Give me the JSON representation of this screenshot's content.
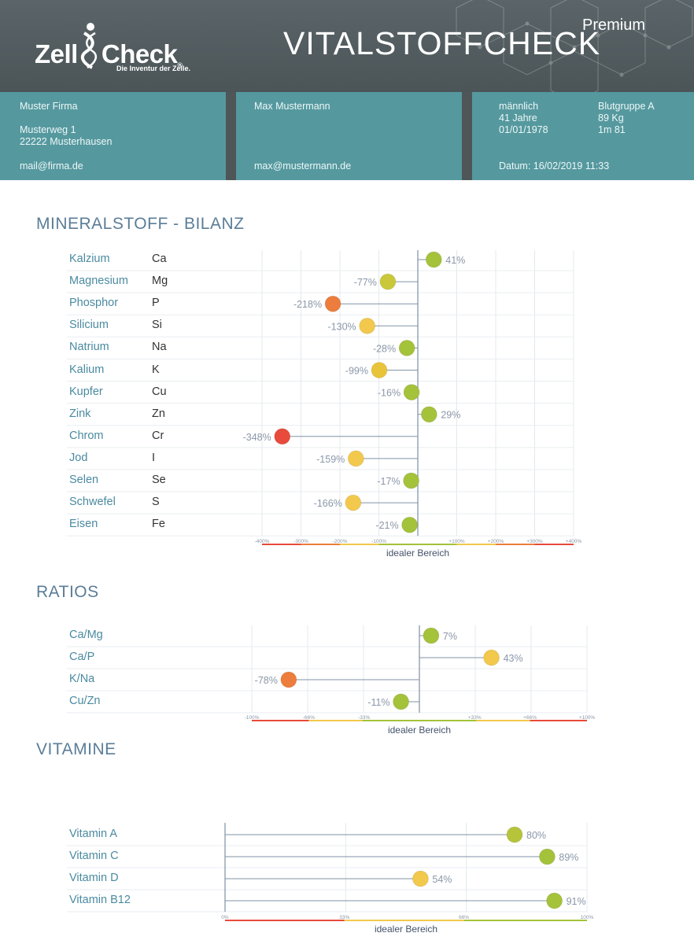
{
  "header": {
    "logo_left": "Zell",
    "logo_right": "Check",
    "logo_mark": "®",
    "logo_tagline": "Die Inventur der Zelle.",
    "title": "VITALSTOFFCHECK",
    "edition": "Premium"
  },
  "company": {
    "name": "Muster Firma",
    "street": "Musterweg 1",
    "city": "22222 Musterhausen",
    "email": "mail@firma.de"
  },
  "client": {
    "name": "Max Mustermann",
    "email": "max@mustermann.de"
  },
  "person": {
    "gender": "männlich",
    "age": "41 Jahre",
    "birthdate": "01/01/1978",
    "blood_group": "Blutgruppe A",
    "weight": "89 Kg",
    "height": "1m 81",
    "date": "Datum: 16/02/2019 11:33"
  },
  "sections": {
    "minerals": "MINERALSTOFF - BILANZ",
    "ratios": "RATIOS",
    "vitamins": "VITAMINE"
  },
  "axis_caption": "idealer Bereich",
  "colors": {
    "green": "#a4c23a",
    "yellow": "#f2c94c",
    "orange": "#ec7d3c",
    "red": "#e84a3b",
    "teal": "#55999f",
    "header": "#545e61"
  },
  "chart_data": [
    {
      "type": "scatter",
      "title": "MINERALSTOFF - BILANZ",
      "xlabel": "idealer Bereich",
      "xlim": [
        -400,
        400
      ],
      "xticks": [
        "-400%",
        "-300%",
        "-200%",
        "-100%",
        "+100%",
        "+200%",
        "+300%",
        "+400%"
      ],
      "tick_values": [
        -400,
        -300,
        -200,
        -100,
        100,
        200,
        300,
        400
      ],
      "categories": [
        "Kalzium",
        "Magnesium",
        "Phosphor",
        "Silicium",
        "Natrium",
        "Kalium",
        "Kupfer",
        "Zink",
        "Chrom",
        "Jod",
        "Selen",
        "Schwefel",
        "Eisen"
      ],
      "symbols": [
        "Ca",
        "Mg",
        "P",
        "Si",
        "Na",
        "K",
        "Cu",
        "Zn",
        "Cr",
        "I",
        "Se",
        "S",
        "Fe"
      ],
      "values": [
        41,
        -77,
        -218,
        -130,
        -28,
        -99,
        -16,
        29,
        -348,
        -159,
        -17,
        -166,
        -21
      ],
      "labels": [
        "41%",
        "-77%",
        "-218%",
        "-130%",
        "-28%",
        "-99%",
        "-16%",
        "29%",
        "-348%",
        "-159%",
        "-17%",
        "-166%",
        "-21%"
      ],
      "dot_colors": [
        "#a4c23a",
        "#c9c83a",
        "#ec7d3c",
        "#f2c94c",
        "#a4c23a",
        "#e8c43a",
        "#a4c23a",
        "#a4c23a",
        "#e84a3b",
        "#f2c94c",
        "#a4c23a",
        "#f2c94c",
        "#a4c23a"
      ],
      "grid": true
    },
    {
      "type": "scatter",
      "title": "RATIOS",
      "xlabel": "idealer Bereich",
      "xlim": [
        -100,
        100
      ],
      "xticks": [
        "-100%",
        "-66%",
        "-33%",
        "+33%",
        "+66%",
        "+100%"
      ],
      "tick_values": [
        -100,
        -66,
        -33,
        33,
        66,
        100
      ],
      "categories": [
        "Ca/Mg",
        "Ca/P",
        "K/Na",
        "Cu/Zn"
      ],
      "values": [
        7,
        43,
        -78,
        -11
      ],
      "labels": [
        "7%",
        "43%",
        "-78%",
        "-11%"
      ],
      "dot_colors": [
        "#a4c23a",
        "#f2c94c",
        "#ec7d3c",
        "#a4c23a"
      ],
      "grid": true
    },
    {
      "type": "scatter",
      "title": "VITAMINE",
      "xlabel": "idealer Bereich",
      "xlim": [
        0,
        100
      ],
      "xticks": [
        "0%",
        "33%",
        "66%",
        "100%"
      ],
      "tick_values": [
        0,
        33,
        66,
        100
      ],
      "categories": [
        "Vitamin A",
        "Vitamin C",
        "Vitamin D",
        "Vitamin B12"
      ],
      "values": [
        80,
        89,
        54,
        91
      ],
      "labels": [
        "80%",
        "89%",
        "54%",
        "91%"
      ],
      "dot_colors": [
        "#b5c43a",
        "#a4c23a",
        "#f2c94c",
        "#a4c23a"
      ],
      "grid": true
    }
  ]
}
